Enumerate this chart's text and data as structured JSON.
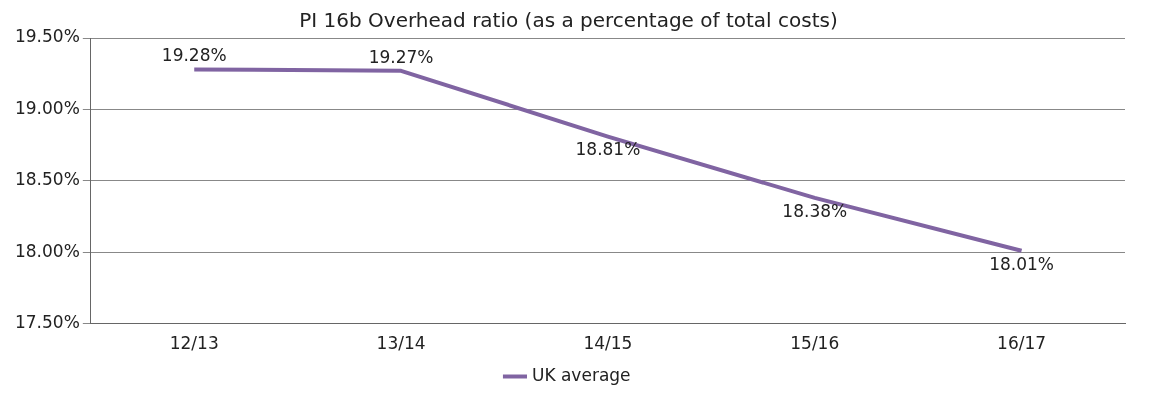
{
  "chart_data": {
    "type": "line",
    "title": "PI 16b Overhead ratio (as a percentage of total costs)",
    "categories": [
      "12/13",
      "13/14",
      "14/15",
      "15/16",
      "16/17"
    ],
    "series": [
      {
        "name": "UK average",
        "color": "#8064a2",
        "values": [
          19.28,
          19.27,
          18.81,
          18.38,
          18.01
        ],
        "value_labels": [
          "19.28%",
          "19.27%",
          "18.81%",
          "18.38%",
          "18.01%"
        ]
      }
    ],
    "ylim": [
      17.5,
      19.5
    ],
    "yticks": [
      {
        "value": 17.5,
        "label": "17.50%"
      },
      {
        "value": 18,
        "label": "18.00%"
      },
      {
        "value": 18.5,
        "label": "18.50%"
      },
      {
        "value": 19,
        "label": "19.00%"
      },
      {
        "value": 19.5,
        "label": "19.50%"
      }
    ],
    "grid": "y",
    "legend": "bottom",
    "marker": "none",
    "line_style": "solid"
  }
}
